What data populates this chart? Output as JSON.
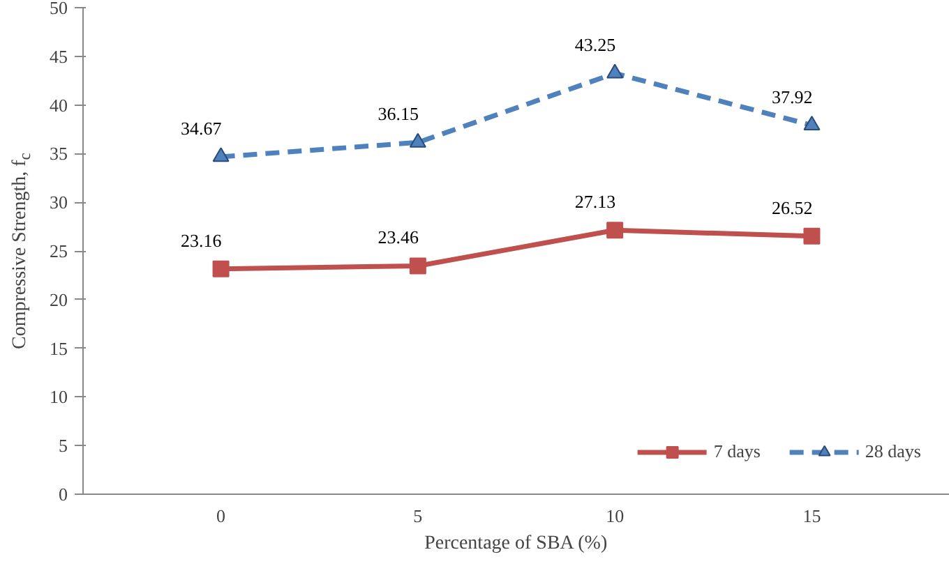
{
  "chart_data": {
    "type": "line",
    "xlabel": "Percentage of SBA (%)",
    "ylabel": "Compressive Strength, f$_{c}$",
    "categories": [
      "0",
      "5",
      "10",
      "15"
    ],
    "series": [
      {
        "name": "7 days",
        "color": "#c0504d",
        "values": [
          23.16,
          23.46,
          27.13,
          26.52
        ],
        "marker": "square",
        "line_style": "solid"
      },
      {
        "name": "28 days",
        "color": "#4f81bd",
        "values": [
          34.67,
          36.15,
          43.25,
          37.92
        ],
        "marker": "triangle",
        "line_style": "dashed"
      }
    ],
    "ylim": [
      0,
      50
    ],
    "yticks": [
      0,
      5,
      10,
      15,
      20,
      25,
      30,
      35,
      40,
      45,
      50
    ],
    "grid": false,
    "legend": "bottom right",
    "data_labels": true
  }
}
